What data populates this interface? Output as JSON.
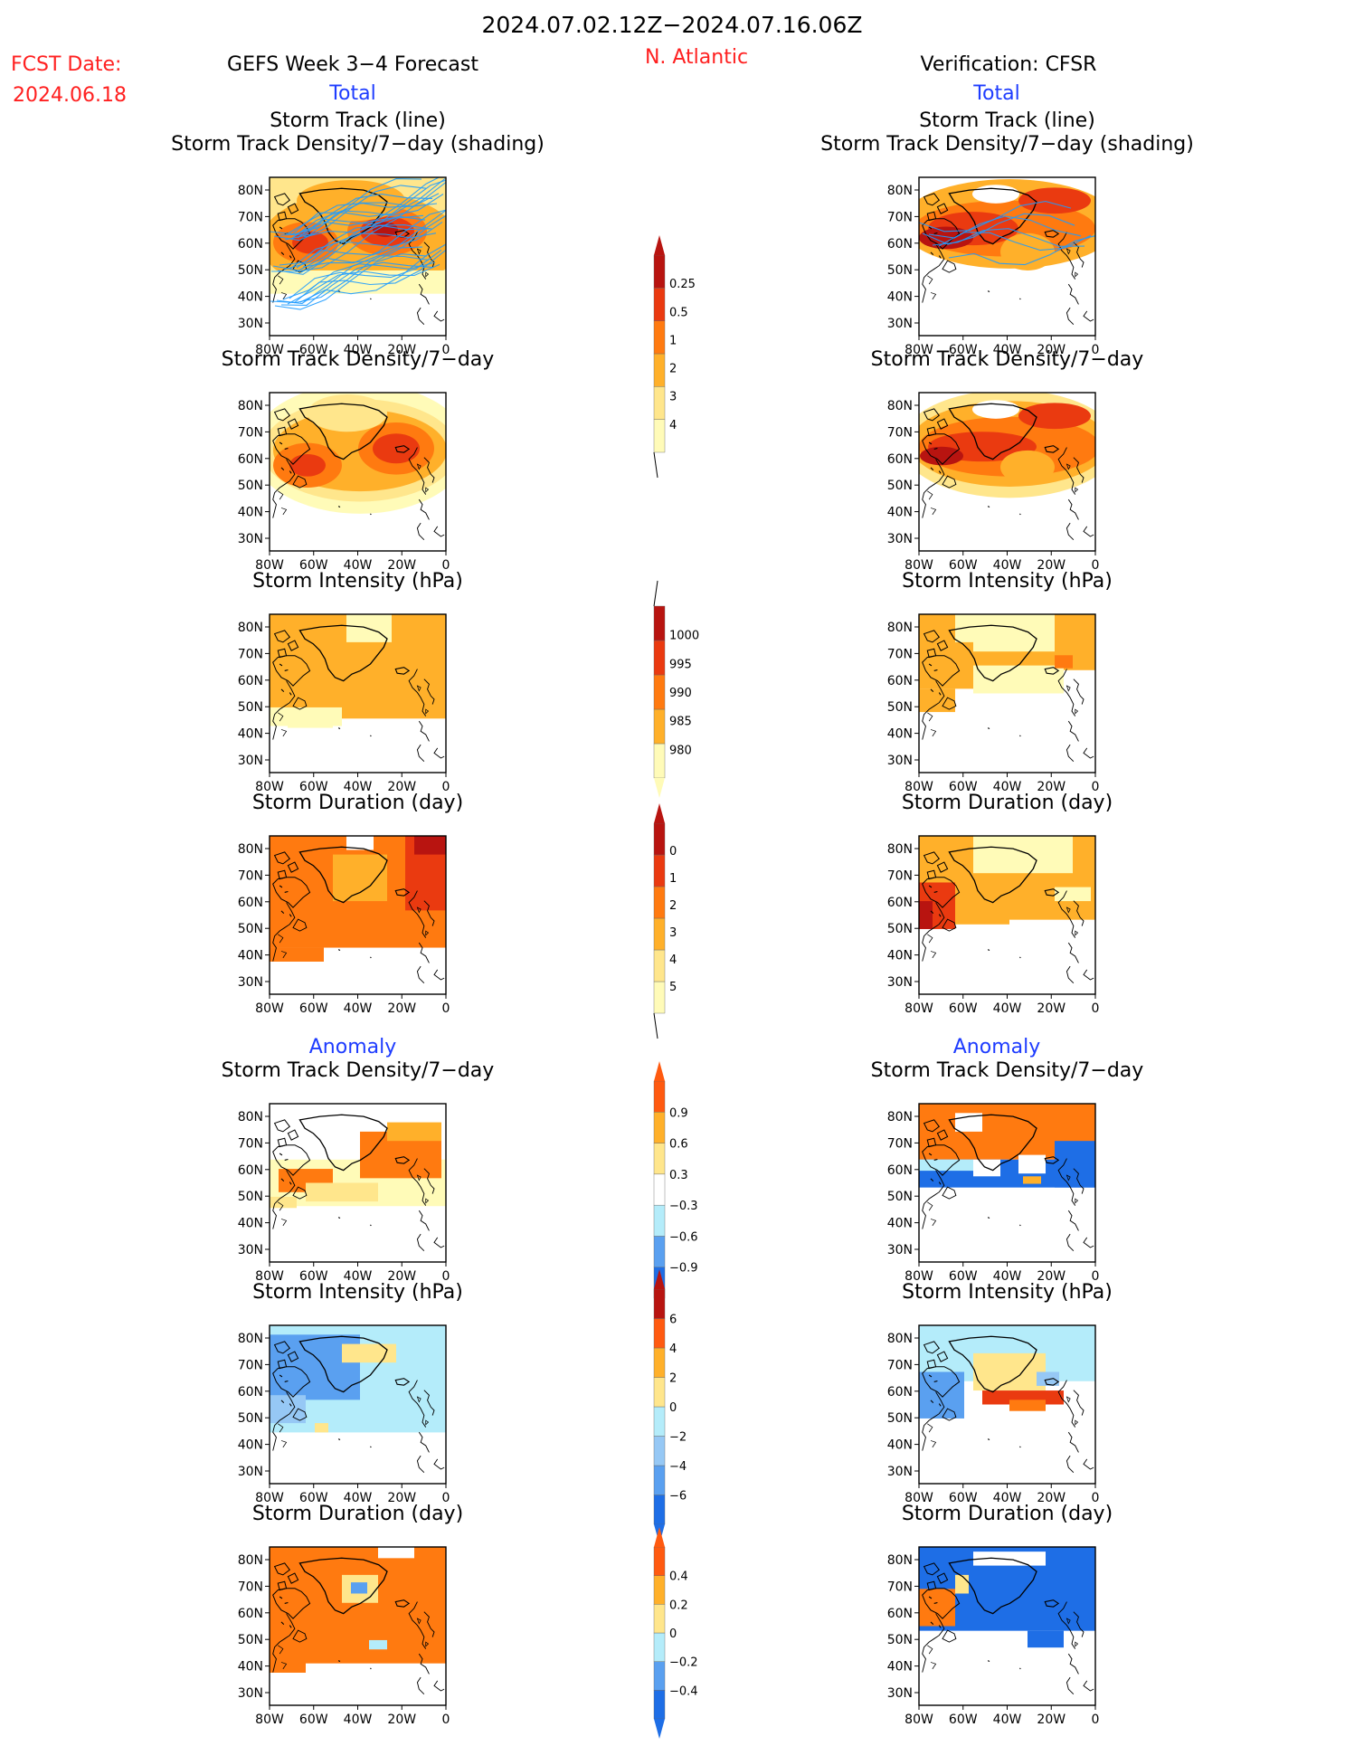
{
  "header": {
    "period": "2024.07.02.12Z−2024.07.16.06Z",
    "fcst_label": "FCST Date:",
    "fcst_date": "2024.06.18",
    "forecast_title": "GEFS Week 3−4 Forecast",
    "region": "N. Atlantic",
    "verification_title": "Verification: CFSR"
  },
  "sections": {
    "total_label": "Total",
    "anomaly_label": "Anomaly"
  },
  "colors": {
    "title_red": "#ff2020",
    "section_blue": "#1e3cff",
    "track_line": "#1e9bff"
  },
  "panels": {
    "titles": {
      "track_line": "Storm Track (line)",
      "track_shading": "Storm Track Density/7−day (shading)",
      "density": "Storm Track Density/7−day",
      "intensity": "Storm Intensity (hPa)",
      "duration": "Storm Duration (day)"
    },
    "lat_labels": [
      "80N",
      "70N",
      "60N",
      "50N",
      "40N",
      "30N"
    ],
    "lon_labels": [
      "80W",
      "60W",
      "40W",
      "20W",
      "0"
    ]
  },
  "colorbars": [
    {
      "id": "density",
      "colors": [
        "#fffbb8",
        "#ffe68c",
        "#ffb02a",
        "#ff7a10",
        "#ea3a10",
        "#b81410"
      ],
      "labels": [
        "0.25",
        "0.5",
        "1",
        "2",
        "3",
        "4"
      ]
    },
    {
      "id": "intensity",
      "colors": [
        "#fffbb8",
        "#ffb02a",
        "#ff7a10",
        "#ea3a10",
        "#b81410"
      ],
      "labels": [
        "1000",
        "995",
        "990",
        "985",
        "980"
      ]
    },
    {
      "id": "duration",
      "colors": [
        "#fffbb8",
        "#ffe68c",
        "#ffb02a",
        "#ff7a10",
        "#ea3a10",
        "#b81410"
      ],
      "labels": [
        "0",
        "1",
        "2",
        "3",
        "4",
        "5"
      ]
    },
    {
      "id": "density_anom",
      "colors": [
        "#1e6ee6",
        "#5aa0f0",
        "#b4ecfa",
        "#ffffff",
        "#ffe68c",
        "#ffb02a",
        "#ff5a10"
      ],
      "labels": [
        "0.9",
        "0.6",
        "0.3",
        "−0.3",
        "−0.6",
        "−0.9"
      ]
    },
    {
      "id": "intensity_anom",
      "colors": [
        "#1e6ee6",
        "#5aa0f0",
        "#96c8f5",
        "#b4ecfa",
        "#ffe68c",
        "#ffb02a",
        "#ff5a10",
        "#b81410"
      ],
      "labels": [
        "6",
        "4",
        "2",
        "0",
        "−2",
        "−4",
        "−6"
      ]
    },
    {
      "id": "duration_anom",
      "colors": [
        "#1e6ee6",
        "#5aa0f0",
        "#b4ecfa",
        "#ffe68c",
        "#ffb02a",
        "#ff5a10"
      ],
      "labels": [
        "0.4",
        "0.2",
        "0",
        "−0.2",
        "−0.4"
      ]
    }
  ]
}
